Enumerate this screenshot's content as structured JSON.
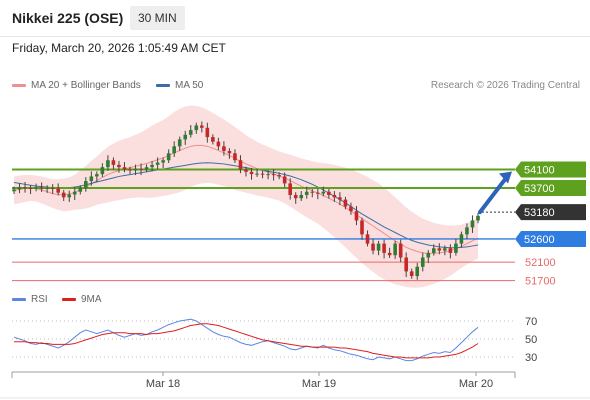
{
  "header": {
    "title": "Nikkei 225 (OSE)",
    "timeframe": "30 MIN"
  },
  "datetime": "Friday, March 20, 2026 1:05:49 AM CET",
  "legend": {
    "bb_label": "MA 20 + Bollinger Bands",
    "ma50_label": "MA 50",
    "rsi_label": "RSI",
    "rsi_ma_label": "9MA"
  },
  "credit": "Research © 2026 Trading Central",
  "colors": {
    "up_candle": "#2e7d32",
    "down_candle": "#c62828",
    "bb_fill": "#f9d3d3",
    "ma20": "#ef8f8f",
    "ma50": "#3a6ea5",
    "resistance": "#5ea11f",
    "pivot": "#2f7de1",
    "support": "#e86a6a",
    "rsi": "#5b86e5",
    "rsi_ma": "#e01e1e",
    "arrow": "#2d63b8"
  },
  "chart_data": {
    "type": "candlestick",
    "y_range": [
      51650,
      55600
    ],
    "x_ticks": [
      "Mar 18",
      "Mar 19",
      "Mar 20"
    ],
    "current_price": 53180,
    "scenario_target": 54100,
    "levels": [
      {
        "label": "54100",
        "value": 54100,
        "kind": "resistance"
      },
      {
        "label": "53700",
        "value": 53700,
        "kind": "resistance"
      },
      {
        "label": "52600",
        "value": 52600,
        "kind": "pivot"
      },
      {
        "label": "52100",
        "value": 52100,
        "kind": "support"
      },
      {
        "label": "51700",
        "value": 51700,
        "kind": "support"
      }
    ],
    "closes": [
      53670,
      53720,
      53700,
      53690,
      53710,
      53695,
      53700,
      53690,
      53600,
      53500,
      53560,
      53620,
      53700,
      53850,
      53950,
      54000,
      54150,
      54300,
      54200,
      54150,
      54100,
      54080,
      54120,
      54100,
      54150,
      54200,
      54250,
      54300,
      54450,
      54600,
      54750,
      54850,
      54950,
      55050,
      55000,
      54800,
      54700,
      54600,
      54500,
      54450,
      54300,
      54100,
      54050,
      54000,
      54010,
      53990,
      54000,
      53980,
      53950,
      53800,
      53550,
      53480,
      53550,
      53620,
      53600,
      53580,
      53620,
      53550,
      53500,
      53450,
      53300,
      53200,
      53000,
      52700,
      52500,
      52350,
      52500,
      52300,
      52250,
      52500,
      52200,
      51900,
      51800,
      52000,
      52200,
      52300,
      52400,
      52350,
      52400,
      52300,
      52500,
      52700,
      52850,
      53000,
      53100
    ],
    "ma20": [
      53650,
      53670,
      53690,
      53700,
      53690,
      53660,
      53620,
      53580,
      53560,
      53550,
      53570,
      53610,
      53660,
      53720,
      53790,
      53860,
      53930,
      53990,
      54040,
      54080,
      54110,
      54140,
      54170,
      54200,
      54230,
      54270,
      54310,
      54350,
      54400,
      54460,
      54510,
      54560,
      54600,
      54620,
      54620,
      54600,
      54560,
      54510,
      54460,
      54400,
      54340,
      54280,
      54220,
      54170,
      54120,
      54080,
      54040,
      54000,
      53960,
      53910,
      53860,
      53800,
      53740,
      53690,
      53640,
      53590,
      53540,
      53480,
      53420,
      53350,
      53280,
      53200,
      53120,
      53040,
      52960,
      52880,
      52800,
      52720,
      52640,
      52560,
      52490,
      52420,
      52370,
      52330,
      52300,
      52290,
      52290,
      52300,
      52320,
      52350,
      52390,
      52440,
      52500,
      52560,
      52620
    ],
    "ma50": [
      53820,
      53800,
      53780,
      53760,
      53740,
      53730,
      53720,
      53710,
      53700,
      53700,
      53710,
      53720,
      53740,
      53770,
      53800,
      53830,
      53860,
      53890,
      53920,
      53950,
      53970,
      53990,
      54010,
      54030,
      54050,
      54070,
      54090,
      54110,
      54130,
      54150,
      54170,
      54190,
      54210,
      54230,
      54240,
      54245,
      54240,
      54230,
      54220,
      54200,
      54180,
      54160,
      54140,
      54120,
      54100,
      54080,
      54060,
      54040,
      54020,
      53990,
      53960,
      53920,
      53880,
      53830,
      53780,
      53720,
      53660,
      53590,
      53520,
      53450,
      53380,
      53300,
      53220,
      53140,
      53070,
      53000,
      52930,
      52860,
      52800,
      52740,
      52680,
      52620,
      52570,
      52530,
      52500,
      52470,
      52450,
      52430,
      52420,
      52410,
      52410,
      52420,
      52430,
      52450,
      52470
    ],
    "bb_width": [
      300,
      300,
      290,
      280,
      280,
      290,
      300,
      310,
      330,
      350,
      360,
      380,
      420,
      460,
      500,
      520,
      560,
      600,
      620,
      640,
      650,
      660,
      680,
      700,
      740,
      780,
      800,
      820,
      850,
      880,
      900,
      900,
      880,
      850,
      820,
      790,
      760,
      740,
      720,
      700,
      680,
      650,
      620,
      600,
      580,
      560,
      550,
      540,
      530,
      540,
      560,
      580,
      600,
      620,
      640,
      660,
      700,
      740,
      780,
      820,
      860,
      900,
      930,
      960,
      980,
      990,
      1000,
      990,
      970,
      940,
      900,
      860,
      820,
      780,
      740,
      700,
      660,
      620,
      580,
      540,
      500,
      470,
      450,
      440,
      440
    ],
    "rsi": {
      "levels": [
        70,
        50,
        30
      ],
      "values": [
        52,
        50,
        48,
        45,
        44,
        46,
        44,
        42,
        40,
        43,
        47,
        52,
        57,
        60,
        58,
        56,
        58,
        60,
        57,
        54,
        52,
        54,
        56,
        54,
        55,
        58,
        60,
        63,
        66,
        68,
        70,
        71,
        72,
        70,
        66,
        62,
        58,
        55,
        53,
        52,
        49,
        46,
        44,
        43,
        45,
        47,
        48,
        46,
        44,
        42,
        39,
        38,
        40,
        42,
        41,
        40,
        43,
        40,
        38,
        37,
        35,
        33,
        32,
        30,
        28,
        27,
        30,
        29,
        28,
        30,
        28,
        26,
        26,
        28,
        31,
        33,
        35,
        34,
        36,
        35,
        40,
        46,
        52,
        58,
        63
      ],
      "ma9": [
        47,
        47,
        47,
        46,
        46,
        45,
        45,
        44,
        44,
        44,
        44,
        45,
        47,
        49,
        51,
        53,
        55,
        56,
        57,
        57,
        57,
        56,
        56,
        56,
        55,
        56,
        56,
        57,
        58,
        59,
        61,
        63,
        65,
        66,
        67,
        67,
        66,
        65,
        63,
        61,
        59,
        57,
        55,
        53,
        51,
        49,
        48,
        47,
        46,
        45,
        44,
        43,
        42,
        42,
        41,
        41,
        41,
        41,
        41,
        40,
        40,
        39,
        38,
        37,
        36,
        34,
        33,
        32,
        31,
        30,
        30,
        29,
        29,
        29,
        29,
        29,
        30,
        30,
        31,
        32,
        33,
        35,
        38,
        41,
        45
      ]
    }
  }
}
